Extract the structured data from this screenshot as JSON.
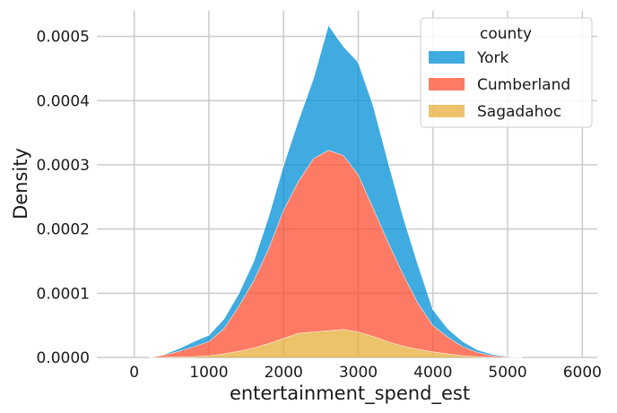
{
  "chart_data": {
    "type": "area",
    "stacked": true,
    "xlabel": "entertainment_spend_est",
    "ylabel": "Density",
    "xlim": [
      -500,
      6200
    ],
    "ylim": [
      0,
      0.00054
    ],
    "xticks": [
      0,
      1000,
      2000,
      3000,
      4000,
      5000,
      6000
    ],
    "xtick_labels": [
      "0",
      "1000",
      "2000",
      "3000",
      "4000",
      "5000",
      "6000"
    ],
    "yticks": [
      0,
      0.0001,
      0.0002,
      0.0003,
      0.0004,
      0.0005
    ],
    "ytick_labels": [
      "0.0000",
      "0.0001",
      "0.0002",
      "0.0003",
      "0.0004",
      "0.0005"
    ],
    "grid": true,
    "legend": {
      "title": "county",
      "placement": "top-right"
    },
    "x": [
      200,
      400,
      600,
      800,
      1000,
      1200,
      1400,
      1600,
      1800,
      2000,
      2200,
      2400,
      2600,
      2800,
      3000,
      3200,
      3400,
      3600,
      3800,
      4000,
      4200,
      4400,
      4600,
      4800,
      5000,
      5200
    ],
    "series": [
      {
        "name": "Sagadahoc",
        "color": "#e5ae38",
        "values": [
          0,
          5e-07,
          1e-06,
          1.5e-06,
          3e-06,
          6e-06,
          1e-05,
          1.5e-05,
          2.2e-05,
          3e-05,
          3.8e-05,
          4e-05,
          4.2e-05,
          4.4e-05,
          4e-05,
          3.3e-05,
          2.5e-05,
          1.8e-05,
          1.3e-05,
          9e-06,
          6e-06,
          3e-06,
          1.5e-06,
          5e-07,
          0,
          0
        ]
      },
      {
        "name": "Cumberland",
        "color": "#fc4f30",
        "values": [
          0,
          3.5e-06,
          9e-06,
          1.55e-05,
          2.2e-05,
          3.9e-05,
          7e-05,
          0.000105,
          0.000148,
          0.0002,
          0.000237,
          0.00027,
          0.000281,
          0.000271,
          0.000245,
          0.0002,
          0.000155,
          0.000112,
          7.2e-05,
          4.1e-05,
          2.6e-05,
          1.4e-05,
          6.5e-06,
          2.5e-06,
          1e-06,
          0
        ]
      },
      {
        "name": "York",
        "color": "#008fd5",
        "values": [
          0,
          1e-06,
          4e-06,
          8e-06,
          1e-05,
          1.5e-05,
          2e-05,
          3e-05,
          5e-05,
          7e-05,
          9.5e-05,
          0.000125,
          0.000195,
          0.00017,
          0.000175,
          0.00016,
          0.000125,
          9e-05,
          6e-05,
          2.5e-05,
          1.3e-05,
          8e-06,
          4e-06,
          2e-06,
          1e-06,
          0
        ]
      }
    ],
    "legend_order": [
      "York",
      "Cumberland",
      "Sagadahoc"
    ],
    "colors": {
      "York": "#008fd5",
      "Cumberland": "#fc4f30",
      "Sagadahoc": "#e5ae38",
      "grid": "#cbcbcb",
      "background": "#ffffff"
    }
  }
}
